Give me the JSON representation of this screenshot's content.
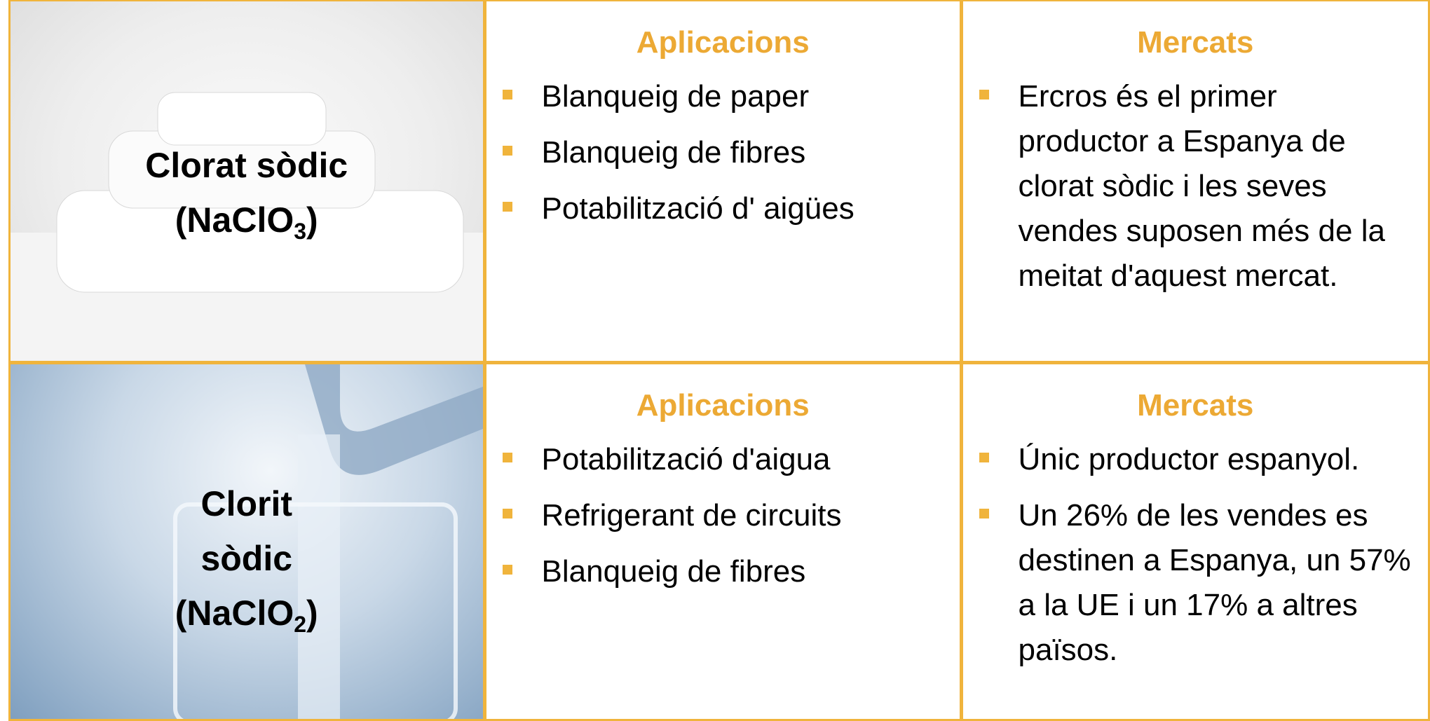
{
  "rows": [
    {
      "name": "Clorat sòdic",
      "formula": [
        "(NaClO",
        "3",
        ")"
      ],
      "applications_title": "Aplicacions",
      "applications": [
        "Blanqueig de paper",
        "Blanqueig de fibres",
        "Potabilització d' aigües"
      ],
      "markets_title": "Mercats",
      "markets": [
        "Ercros és el primer productor a Espanya de clorat sòdic i les seves vendes suposen més de la meitat d'aquest mercat."
      ]
    },
    {
      "name": "Clorit sòdic",
      "formula": [
        "(NaClO",
        "2",
        ")"
      ],
      "applications_title": "Aplicacions",
      "applications": [
        "Potabilització d'aigua",
        "Refrigerant de circuits",
        "Blanqueig de fibres"
      ],
      "markets_title": "Mercats",
      "markets": [
        "Únic productor espanyol.",
        "Un 26% de les vendes es destinen a Espanya, un 57% a la UE i un 17% a altres països."
      ]
    }
  ]
}
